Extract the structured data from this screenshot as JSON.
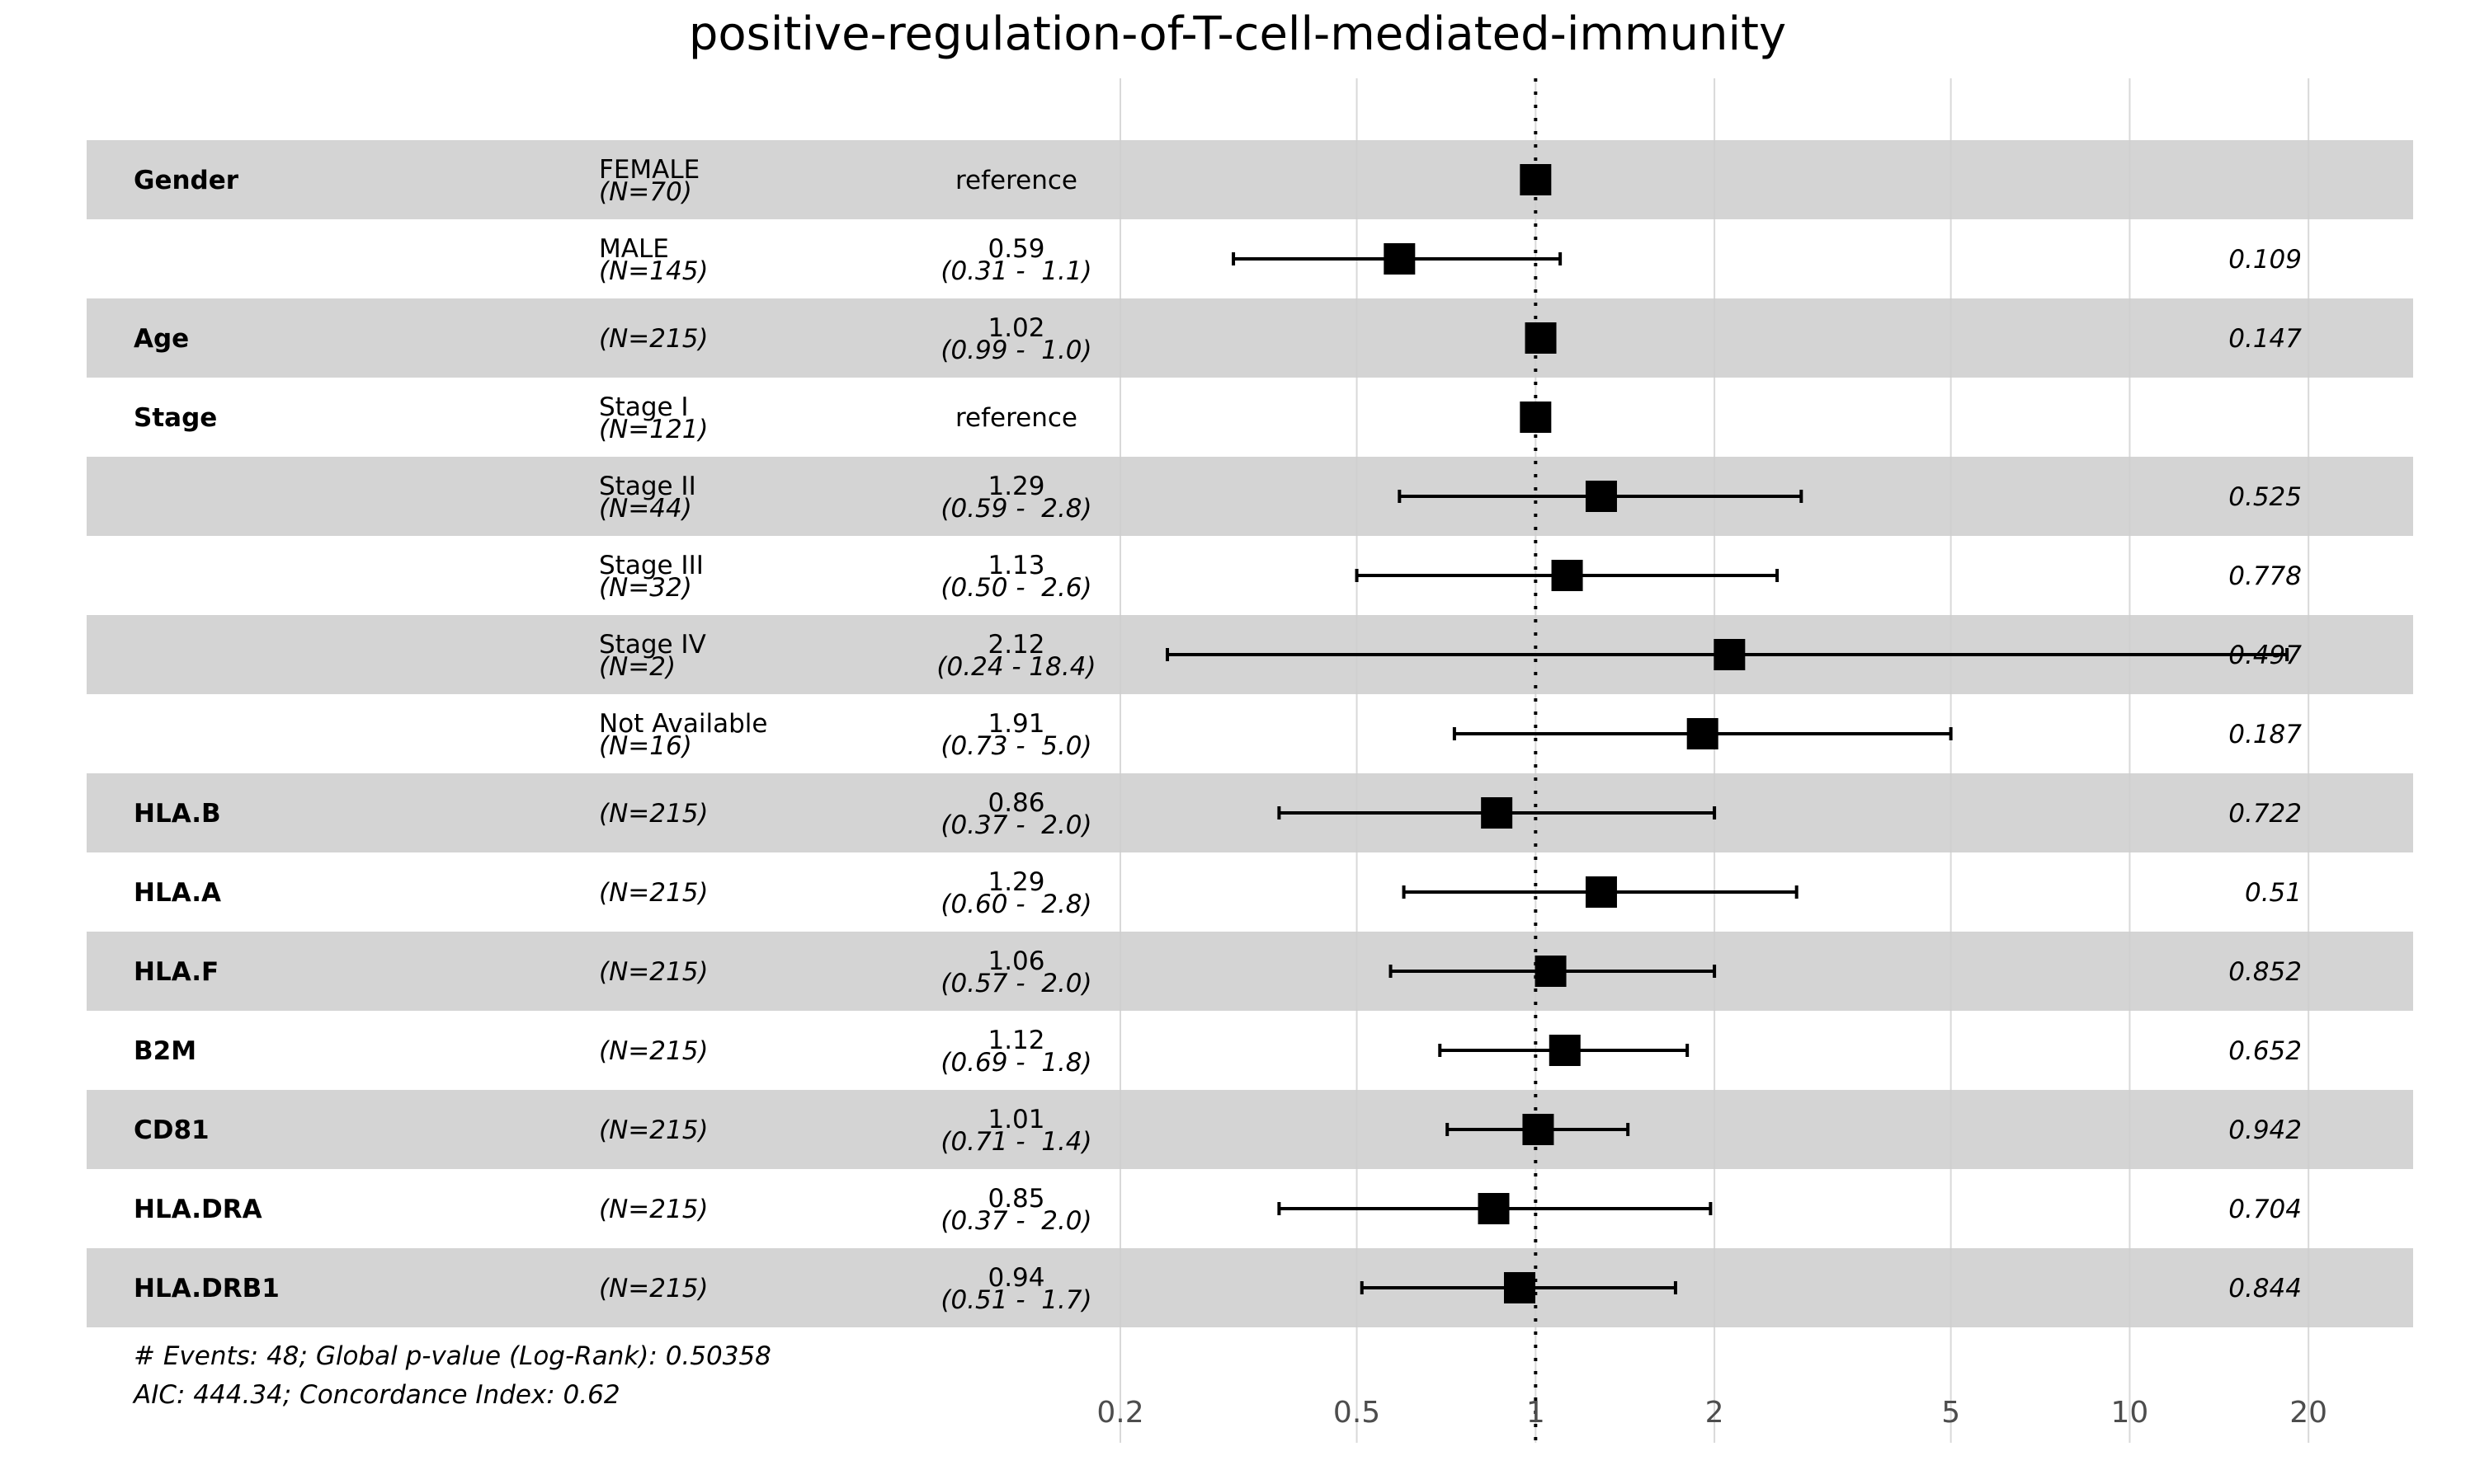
{
  "chart_data": {
    "type": "forest",
    "title": "positive-regulation-of-T-cell-mediated-immunity",
    "x_scale": "log",
    "xlim": [
      0.2,
      30
    ],
    "x_ticks": [
      {
        "value": 0.2,
        "label": "0.2"
      },
      {
        "value": 0.5,
        "label": "0.5"
      },
      {
        "value": 1,
        "label": "1"
      },
      {
        "value": 2,
        "label": "2"
      },
      {
        "value": 5,
        "label": "5"
      },
      {
        "value": 10,
        "label": "10"
      },
      {
        "value": 20,
        "label": "20"
      }
    ],
    "reference_line": 1,
    "rows": [
      {
        "variable": "Gender",
        "level": "FEMALE",
        "n": "(N=70)",
        "est_text": "reference",
        "ci_text": "",
        "p_text": "",
        "hr": 1.0,
        "lo": null,
        "hi": null,
        "shaded": true
      },
      {
        "variable": "",
        "level": "MALE",
        "n": "(N=145)",
        "est_text": "0.59",
        "ci_text": "(0.31 -  1.1)",
        "p_text": "0.109",
        "hr": 0.59,
        "lo": 0.31,
        "hi": 1.1,
        "shaded": false
      },
      {
        "variable": "Age",
        "level": "",
        "n": "(N=215)",
        "est_text": "1.02",
        "ci_text": "(0.99 -  1.0)",
        "p_text": "0.147",
        "hr": 1.02,
        "lo": 0.99,
        "hi": 1.04,
        "shaded": true
      },
      {
        "variable": "Stage",
        "level": "Stage I",
        "n": "(N=121)",
        "est_text": "reference",
        "ci_text": "",
        "p_text": "",
        "hr": 1.0,
        "lo": null,
        "hi": null,
        "shaded": false
      },
      {
        "variable": "",
        "level": "Stage II",
        "n": "(N=44)",
        "est_text": "1.29",
        "ci_text": "(0.59 -  2.8)",
        "p_text": "0.525",
        "hr": 1.29,
        "lo": 0.59,
        "hi": 2.8,
        "shaded": true
      },
      {
        "variable": "",
        "level": "Stage III",
        "n": "(N=32)",
        "est_text": "1.13",
        "ci_text": "(0.50 -  2.6)",
        "p_text": "0.778",
        "hr": 1.13,
        "lo": 0.5,
        "hi": 2.55,
        "shaded": false
      },
      {
        "variable": "",
        "level": "Stage IV",
        "n": "(N=2)",
        "est_text": "2.12",
        "ci_text": "(0.24 - 18.4)",
        "p_text": "0.497",
        "hr": 2.12,
        "lo": 0.24,
        "hi": 18.4,
        "shaded": true
      },
      {
        "variable": "",
        "level": "Not Available",
        "n": "(N=16)",
        "est_text": "1.91",
        "ci_text": "(0.73 -  5.0)",
        "p_text": "0.187",
        "hr": 1.91,
        "lo": 0.73,
        "hi": 5.0,
        "shaded": false
      },
      {
        "variable": "HLA.B",
        "level": "",
        "n": "(N=215)",
        "est_text": "0.86",
        "ci_text": "(0.37 -  2.0)",
        "p_text": "0.722",
        "hr": 0.86,
        "lo": 0.37,
        "hi": 2.0,
        "shaded": true
      },
      {
        "variable": "HLA.A",
        "level": "",
        "n": "(N=215)",
        "est_text": "1.29",
        "ci_text": "(0.60 -  2.8)",
        "p_text": "0.51",
        "hr": 1.29,
        "lo": 0.6,
        "hi": 2.75,
        "shaded": false
      },
      {
        "variable": "HLA.F",
        "level": "",
        "n": "(N=215)",
        "est_text": "1.06",
        "ci_text": "(0.57 -  2.0)",
        "p_text": "0.852",
        "hr": 1.06,
        "lo": 0.57,
        "hi": 2.0,
        "shaded": true
      },
      {
        "variable": "B2M",
        "level": "",
        "n": "(N=215)",
        "est_text": "1.12",
        "ci_text": "(0.69 -  1.8)",
        "p_text": "0.652",
        "hr": 1.12,
        "lo": 0.69,
        "hi": 1.8,
        "shaded": false
      },
      {
        "variable": "CD81",
        "level": "",
        "n": "(N=215)",
        "est_text": "1.01",
        "ci_text": "(0.71 -  1.4)",
        "p_text": "0.942",
        "hr": 1.01,
        "lo": 0.71,
        "hi": 1.43,
        "shaded": true
      },
      {
        "variable": "HLA.DRA",
        "level": "",
        "n": "(N=215)",
        "est_text": "0.85",
        "ci_text": "(0.37 -  2.0)",
        "p_text": "0.704",
        "hr": 0.85,
        "lo": 0.37,
        "hi": 1.97,
        "shaded": false
      },
      {
        "variable": "HLA.DRB1",
        "level": "",
        "n": "(N=215)",
        "est_text": "0.94",
        "ci_text": "(0.51 -  1.7)",
        "p_text": "0.844",
        "hr": 0.94,
        "lo": 0.51,
        "hi": 1.72,
        "shaded": true
      }
    ],
    "footnote": [
      "# Events: 48; Global p-value (Log-Rank): 0.50358",
      "AIC: 444.34; Concordance Index: 0.62"
    ],
    "colors": {
      "shade": "#cccccc",
      "grid": "#d9d9d9",
      "mark": "#000000"
    }
  }
}
